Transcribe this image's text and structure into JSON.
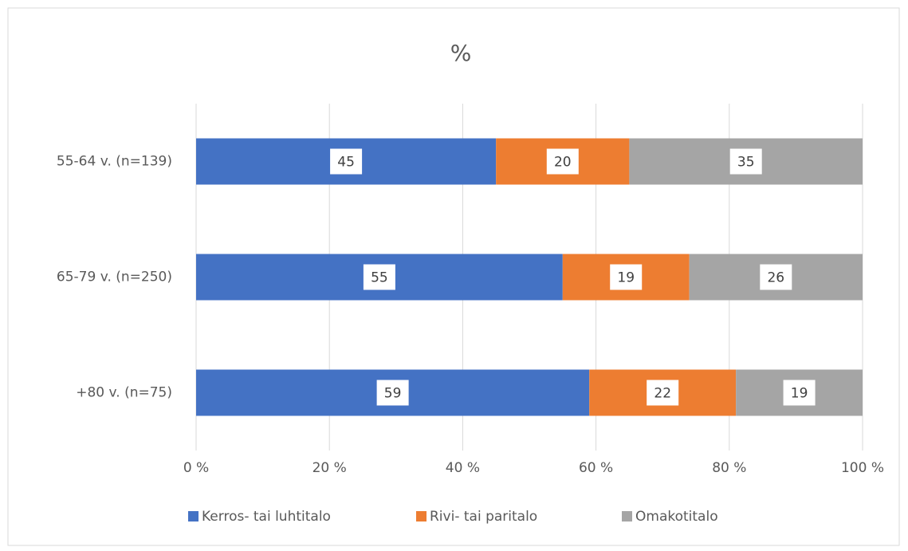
{
  "chart_data": {
    "type": "bar",
    "orientation": "horizontal",
    "stacked": true,
    "title": "%",
    "categories": [
      "55-64 v. (n=139)",
      "65-79 v. (n=250)",
      "+80 v. (n=75)"
    ],
    "series": [
      {
        "name": "Kerros- tai luhtitalo",
        "color": "#4472c4",
        "values": [
          45,
          55,
          59
        ]
      },
      {
        "name": "Rivi- tai paritalo",
        "color": "#ed7d31",
        "values": [
          20,
          19,
          22
        ]
      },
      {
        "name": "Omakotitalo",
        "color": "#a5a5a5",
        "values": [
          35,
          26,
          19
        ]
      }
    ],
    "xlim": [
      0,
      100
    ],
    "xticks": [
      {
        "value": 0,
        "label": "0 %"
      },
      {
        "value": 20,
        "label": "20 %"
      },
      {
        "value": 40,
        "label": "40 %"
      },
      {
        "value": 60,
        "label": "60 %"
      },
      {
        "value": 80,
        "label": "80 %"
      },
      {
        "value": 100,
        "label": "100 %"
      }
    ],
    "grid": true,
    "legend": "bottom"
  }
}
